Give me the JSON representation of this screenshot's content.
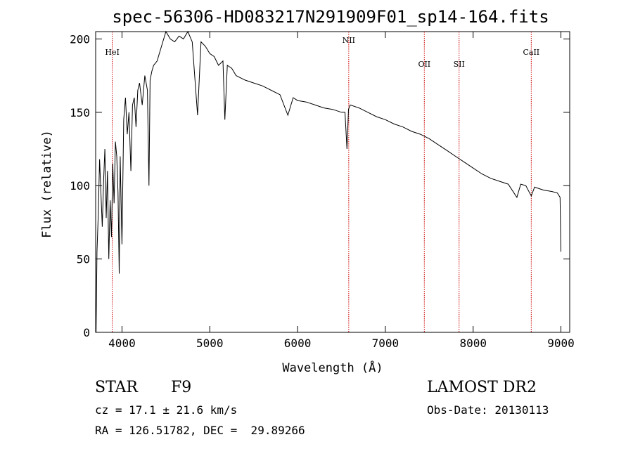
{
  "chart_data": {
    "type": "line",
    "title": "spec-56306-HD083217N291909F01_sp14-164.fits",
    "xlabel": "Wavelength (Å)",
    "ylabel": "Flux (relative)",
    "xlim": [
      3700,
      9100
    ],
    "ylim": [
      0,
      205
    ],
    "xticks": [
      4000,
      5000,
      6000,
      7000,
      8000,
      9000
    ],
    "yticks": [
      0,
      50,
      100,
      150,
      200
    ],
    "grid": false,
    "series_color": "#000000",
    "line_marker_color": "#cc0000",
    "spectral_lines": [
      {
        "label": "HeI",
        "x": 3889
      },
      {
        "label": "NII",
        "x": 6583
      },
      {
        "label": "OII",
        "x": 7444
      },
      {
        "label": "SII",
        "x": 7840
      },
      {
        "label": "CaII",
        "x": 8662
      }
    ],
    "series": [
      {
        "x": [
          3705,
          3715,
          3730,
          3745,
          3760,
          3775,
          3790,
          3805,
          3820,
          3835,
          3850,
          3865,
          3880,
          3895,
          3910,
          3925,
          3940,
          3955,
          3968,
          3980,
          4000,
          4020,
          4040,
          4060,
          4080,
          4101,
          4120,
          4140,
          4160,
          4180,
          4200,
          4230,
          4260,
          4290,
          4307,
          4320,
          4340,
          4360,
          4400,
          4450,
          4500,
          4550,
          4600,
          4650,
          4700,
          4750,
          4800,
          4861,
          4900,
          4950,
          5000,
          5050,
          5100,
          5150,
          5172,
          5200,
          5250,
          5300,
          5400,
          5500,
          5600,
          5700,
          5800,
          5890,
          5950,
          6000,
          6100,
          6200,
          6300,
          6400,
          6500,
          6540,
          6563,
          6580,
          6600,
          6700,
          6800,
          6900,
          7000,
          7100,
          7200,
          7300,
          7400,
          7500,
          7600,
          7700,
          7800,
          7900,
          8000,
          8100,
          8200,
          8300,
          8400,
          8498,
          8542,
          8600,
          8662,
          8700,
          8800,
          8900,
          8960,
          8990,
          9000
        ],
        "values": [
          0,
          55,
          80,
          118,
          95,
          72,
          102,
          125,
          78,
          110,
          50,
          90,
          65,
          115,
          88,
          130,
          120,
          95,
          40,
          120,
          60,
          145,
          160,
          135,
          150,
          110,
          155,
          160,
          140,
          165,
          170,
          155,
          175,
          165,
          100,
          172,
          178,
          182,
          185,
          195,
          205,
          200,
          198,
          202,
          200,
          205,
          198,
          148,
          198,
          195,
          190,
          188,
          182,
          185,
          145,
          182,
          180,
          175,
          172,
          170,
          168,
          165,
          162,
          148,
          160,
          158,
          157,
          155,
          153,
          152,
          150,
          150,
          125,
          152,
          155,
          153,
          150,
          147,
          145,
          142,
          140,
          137,
          135,
          132,
          128,
          124,
          120,
          116,
          112,
          108,
          105,
          103,
          101,
          92,
          101,
          100,
          93,
          99,
          97,
          96,
          95,
          92,
          55
        ]
      }
    ],
    "info": {
      "object_type": "STAR",
      "subclass": "F9",
      "survey": "LAMOST DR2",
      "cz": "cz = 17.1 ± 21.6 km/s",
      "obs_date": "Obs-Date: 20130113",
      "coords": "RA = 126.51782, DEC =  29.89266"
    }
  }
}
